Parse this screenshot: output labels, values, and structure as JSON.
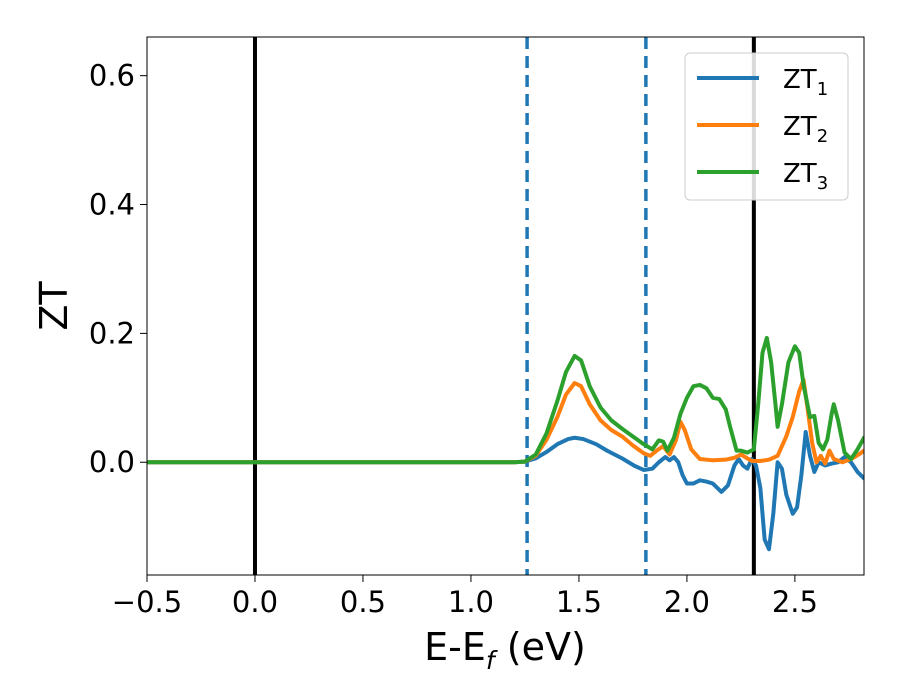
{
  "chart_data": {
    "type": "line",
    "title": "",
    "xlabel": {
      "base": "E-E",
      "sub": "f",
      "rest": " (eV)"
    },
    "ylabel": "ZT",
    "xlim": [
      -0.5,
      2.82
    ],
    "ylim": [
      -0.175,
      0.66
    ],
    "xticks": [
      -0.5,
      0.0,
      0.5,
      1.0,
      1.5,
      2.0,
      2.5
    ],
    "xtick_labels": [
      "−0.5",
      "0.0",
      "0.5",
      "1.0",
      "1.5",
      "2.0",
      "2.5"
    ],
    "yticks": [
      0.0,
      0.2,
      0.4,
      0.6
    ],
    "ytick_labels": [
      "0.0",
      "0.2",
      "0.4",
      "0.6"
    ],
    "grid": false,
    "legend_position": "top-right",
    "vlines": [
      {
        "x": 0.0,
        "style": "solid",
        "color": "#000000"
      },
      {
        "x": 2.31,
        "style": "solid",
        "color": "#000000"
      },
      {
        "x": 1.26,
        "style": "dashed",
        "color": "#1f77b4"
      },
      {
        "x": 1.81,
        "style": "dashed",
        "color": "#1f77b4"
      }
    ],
    "series": [
      {
        "name": "ZT",
        "sub": "1",
        "color": "#1f77b4",
        "points": [
          [
            -0.5,
            0
          ],
          [
            1.2,
            0
          ],
          [
            1.25,
            0.001
          ],
          [
            1.3,
            0.006
          ],
          [
            1.35,
            0.016
          ],
          [
            1.4,
            0.028
          ],
          [
            1.45,
            0.036
          ],
          [
            1.48,
            0.038
          ],
          [
            1.52,
            0.036
          ],
          [
            1.58,
            0.028
          ],
          [
            1.63,
            0.018
          ],
          [
            1.7,
            0.006
          ],
          [
            1.76,
            -0.006
          ],
          [
            1.8,
            -0.012
          ],
          [
            1.84,
            -0.01
          ],
          [
            1.87,
            0.0
          ],
          [
            1.9,
            0.008
          ],
          [
            1.92,
            0.003
          ],
          [
            1.94,
            0.008
          ],
          [
            1.96,
            0.0
          ],
          [
            1.98,
            -0.02
          ],
          [
            2.0,
            -0.033
          ],
          [
            2.03,
            -0.033
          ],
          [
            2.06,
            -0.028
          ],
          [
            2.09,
            -0.03
          ],
          [
            2.12,
            -0.033
          ],
          [
            2.16,
            -0.046
          ],
          [
            2.19,
            -0.036
          ],
          [
            2.22,
            -0.005
          ],
          [
            2.24,
            0.005
          ],
          [
            2.26,
            -0.005
          ],
          [
            2.28,
            -0.01
          ],
          [
            2.3,
            0.005
          ],
          [
            2.32,
            -0.005
          ],
          [
            2.34,
            -0.04
          ],
          [
            2.36,
            -0.12
          ],
          [
            2.38,
            -0.135
          ],
          [
            2.4,
            -0.08
          ],
          [
            2.42,
            0.0
          ],
          [
            2.44,
            -0.01
          ],
          [
            2.46,
            -0.05
          ],
          [
            2.49,
            -0.08
          ],
          [
            2.51,
            -0.07
          ],
          [
            2.53,
            -0.02
          ],
          [
            2.55,
            0.047
          ],
          [
            2.57,
            0.01
          ],
          [
            2.59,
            -0.015
          ],
          [
            2.61,
            0.0
          ],
          [
            2.64,
            -0.005
          ],
          [
            2.67,
            -0.002
          ],
          [
            2.7,
            0.0
          ],
          [
            2.73,
            0.008
          ],
          [
            2.76,
            0.0
          ],
          [
            2.79,
            -0.015
          ],
          [
            2.82,
            -0.025
          ]
        ]
      },
      {
        "name": "ZT",
        "sub": "2",
        "color": "#ff7f0e",
        "points": [
          [
            -0.5,
            0
          ],
          [
            1.2,
            0
          ],
          [
            1.25,
            0.001
          ],
          [
            1.3,
            0.01
          ],
          [
            1.35,
            0.035
          ],
          [
            1.4,
            0.07
          ],
          [
            1.44,
            0.105
          ],
          [
            1.48,
            0.123
          ],
          [
            1.51,
            0.118
          ],
          [
            1.55,
            0.09
          ],
          [
            1.6,
            0.065
          ],
          [
            1.65,
            0.05
          ],
          [
            1.7,
            0.04
          ],
          [
            1.75,
            0.026
          ],
          [
            1.8,
            0.014
          ],
          [
            1.83,
            0.01
          ],
          [
            1.86,
            0.018
          ],
          [
            1.89,
            0.025
          ],
          [
            1.92,
            0.012
          ],
          [
            1.95,
            0.035
          ],
          [
            1.97,
            0.063
          ],
          [
            1.99,
            0.05
          ],
          [
            2.02,
            0.02
          ],
          [
            2.06,
            0.005
          ],
          [
            2.12,
            0.003
          ],
          [
            2.18,
            0.004
          ],
          [
            2.22,
            0.007
          ],
          [
            2.25,
            0.012
          ],
          [
            2.28,
            0.006
          ],
          [
            2.3,
            0.002
          ],
          [
            2.34,
            0.002
          ],
          [
            2.38,
            0.004
          ],
          [
            2.42,
            0.01
          ],
          [
            2.46,
            0.04
          ],
          [
            2.49,
            0.07
          ],
          [
            2.52,
            0.11
          ],
          [
            2.54,
            0.128
          ],
          [
            2.56,
            0.08
          ],
          [
            2.58,
            0.03
          ],
          [
            2.6,
            0.0
          ],
          [
            2.62,
            0.01
          ],
          [
            2.64,
            -0.002
          ],
          [
            2.66,
            0.018
          ],
          [
            2.68,
            0.005
          ],
          [
            2.72,
            0.0
          ],
          [
            2.76,
            0.005
          ],
          [
            2.8,
            0.013
          ],
          [
            2.82,
            0.018
          ]
        ]
      },
      {
        "name": "ZT",
        "sub": "3",
        "color": "#2ca02c",
        "points": [
          [
            -0.5,
            0
          ],
          [
            1.2,
            0
          ],
          [
            1.25,
            0.001
          ],
          [
            1.3,
            0.012
          ],
          [
            1.35,
            0.045
          ],
          [
            1.4,
            0.095
          ],
          [
            1.44,
            0.14
          ],
          [
            1.48,
            0.165
          ],
          [
            1.51,
            0.158
          ],
          [
            1.55,
            0.118
          ],
          [
            1.6,
            0.085
          ],
          [
            1.65,
            0.065
          ],
          [
            1.7,
            0.052
          ],
          [
            1.75,
            0.04
          ],
          [
            1.8,
            0.028
          ],
          [
            1.84,
            0.02
          ],
          [
            1.87,
            0.034
          ],
          [
            1.89,
            0.032
          ],
          [
            1.91,
            0.018
          ],
          [
            1.94,
            0.038
          ],
          [
            1.97,
            0.075
          ],
          [
            2.0,
            0.1
          ],
          [
            2.03,
            0.118
          ],
          [
            2.06,
            0.12
          ],
          [
            2.09,
            0.115
          ],
          [
            2.12,
            0.1
          ],
          [
            2.15,
            0.098
          ],
          [
            2.18,
            0.082
          ],
          [
            2.2,
            0.055
          ],
          [
            2.23,
            0.018
          ],
          [
            2.25,
            0.018
          ],
          [
            2.28,
            0.015
          ],
          [
            2.31,
            0.02
          ],
          [
            2.33,
            0.09
          ],
          [
            2.35,
            0.17
          ],
          [
            2.37,
            0.193
          ],
          [
            2.39,
            0.155
          ],
          [
            2.41,
            0.09
          ],
          [
            2.42,
            0.055
          ],
          [
            2.44,
            0.09
          ],
          [
            2.47,
            0.155
          ],
          [
            2.5,
            0.18
          ],
          [
            2.52,
            0.17
          ],
          [
            2.54,
            0.12
          ],
          [
            2.57,
            0.07
          ],
          [
            2.59,
            0.072
          ],
          [
            2.61,
            0.03
          ],
          [
            2.63,
            0.02
          ],
          [
            2.65,
            0.035
          ],
          [
            2.67,
            0.075
          ],
          [
            2.68,
            0.09
          ],
          [
            2.7,
            0.065
          ],
          [
            2.73,
            0.015
          ],
          [
            2.76,
            0.005
          ],
          [
            2.79,
            0.02
          ],
          [
            2.82,
            0.038
          ]
        ]
      }
    ]
  }
}
